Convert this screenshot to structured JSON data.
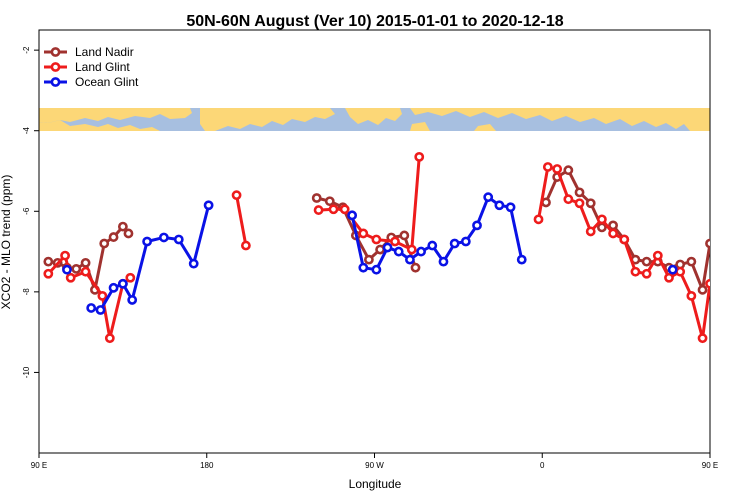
{
  "chart_data": {
    "type": "line",
    "title": "50N-60N August (Ver 10)   2015-01-01 to 2020-12-18",
    "xlabel": "Longitude",
    "ylabel": "XCO2 - MLO trend (ppm)",
    "xlim": [
      90,
      450
    ],
    "ylim": [
      -12,
      -1.5
    ],
    "x_ticks": [
      {
        "value": 90,
        "label": "90 E"
      },
      {
        "value": 180,
        "label": "180"
      },
      {
        "value": 270,
        "label": "90 W"
      },
      {
        "value": 360,
        "label": "0"
      },
      {
        "value": 450,
        "label": "90 E"
      },
      {
        "value": 540,
        "label": "180"
      }
    ],
    "y_ticks": [
      {
        "value": -2,
        "label": "-2"
      },
      {
        "value": -4,
        "label": "-4"
      },
      {
        "value": -6,
        "label": "-6"
      },
      {
        "value": -8,
        "label": "-8"
      },
      {
        "value": -10,
        "label": "-10"
      }
    ],
    "legend_position": "top-left",
    "map_band": {
      "y_top": -3.45,
      "y_bottom": -4.05,
      "ocean_color": "#a7bfe0",
      "land_color": "#fcd777"
    },
    "series": [
      {
        "name": "Land Nadir",
        "color": "#a0322f",
        "segments": [
          [
            [
              95,
              -7.25
            ],
            [
              100,
              -7.28
            ],
            [
              105,
              -7.4
            ],
            [
              110,
              -7.43
            ],
            [
              115,
              -7.28
            ],
            [
              120,
              -7.95
            ],
            [
              125,
              -6.8
            ],
            [
              130,
              -6.64
            ],
            [
              135,
              -6.38
            ],
            [
              138,
              -6.55
            ]
          ],
          [
            [
              239,
              -5.67
            ],
            [
              246,
              -5.75
            ],
            [
              253,
              -5.9
            ],
            [
              260,
              -6.6
            ],
            [
              267,
              -7.2
            ],
            [
              273,
              -6.95
            ],
            [
              279,
              -6.65
            ],
            [
              286,
              -6.6
            ],
            [
              292,
              -7.4
            ]
          ],
          [
            [
              362,
              -5.78
            ],
            [
              368,
              -5.15
            ],
            [
              374,
              -4.98
            ],
            [
              380,
              -5.53
            ],
            [
              386,
              -5.8
            ],
            [
              392,
              -6.4
            ],
            [
              398,
              -6.35
            ],
            [
              404,
              -6.7
            ],
            [
              410,
              -7.2
            ],
            [
              416,
              -7.25
            ],
            [
              422,
              -7.25
            ],
            [
              428,
              -7.4
            ],
            [
              434,
              -7.32
            ],
            [
              440,
              -7.25
            ],
            [
              446,
              -7.95
            ],
            [
              450,
              -6.8
            ]
          ]
        ]
      },
      {
        "name": "Land Glint",
        "color": "#ee1c1c",
        "segments": [
          [
            [
              95,
              -7.55
            ],
            [
              104,
              -7.1
            ],
            [
              107,
              -7.65
            ],
            [
              115,
              -7.5
            ],
            [
              124,
              -8.1
            ],
            [
              128,
              -9.15
            ],
            [
              135,
              -7.8
            ],
            [
              139,
              -7.65
            ]
          ],
          [
            [
              196,
              -5.6
            ],
            [
              201,
              -6.85
            ]
          ],
          [
            [
              240,
              -5.97
            ],
            [
              248,
              -5.95
            ],
            [
              254,
              -5.95
            ],
            [
              264,
              -6.55
            ],
            [
              271,
              -6.7
            ],
            [
              281,
              -6.75
            ],
            [
              290,
              -6.95
            ],
            [
              294,
              -4.65
            ]
          ],
          [
            [
              358,
              -6.2
            ],
            [
              363,
              -4.9
            ],
            [
              368,
              -4.95
            ],
            [
              374,
              -5.7
            ],
            [
              380,
              -5.8
            ],
            [
              386,
              -6.5
            ],
            [
              392,
              -6.2
            ],
            [
              398,
              -6.55
            ],
            [
              404,
              -6.7
            ],
            [
              410,
              -7.5
            ],
            [
              416,
              -7.55
            ],
            [
              422,
              -7.1
            ],
            [
              428,
              -7.65
            ],
            [
              434,
              -7.5
            ],
            [
              440,
              -8.1
            ],
            [
              446,
              -9.15
            ],
            [
              450,
              -7.8
            ]
          ]
        ]
      },
      {
        "name": "Ocean Glint",
        "color": "#0a12e6",
        "segments": [
          [
            [
              105,
              -7.45
            ]
          ],
          [
            [
              118,
              -8.4
            ],
            [
              123,
              -8.45
            ],
            [
              130,
              -7.9
            ],
            [
              135,
              -7.8
            ],
            [
              140,
              -8.2
            ],
            [
              148,
              -6.75
            ],
            [
              157,
              -6.65
            ],
            [
              165,
              -6.7
            ],
            [
              173,
              -7.3
            ],
            [
              181,
              -5.85
            ]
          ],
          [
            [
              258,
              -6.1
            ],
            [
              264,
              -7.4
            ],
            [
              271,
              -7.45
            ],
            [
              277,
              -6.9
            ],
            [
              283,
              -7.0
            ],
            [
              289,
              -7.2
            ],
            [
              295,
              -7.0
            ],
            [
              301,
              -6.85
            ],
            [
              307,
              -7.25
            ],
            [
              313,
              -6.8
            ],
            [
              319,
              -6.75
            ],
            [
              325,
              -6.35
            ],
            [
              331,
              -5.65
            ],
            [
              337,
              -5.85
            ],
            [
              343,
              -5.9
            ],
            [
              349,
              -7.2
            ]
          ],
          [
            [
              430,
              -7.45
            ]
          ]
        ]
      }
    ]
  }
}
